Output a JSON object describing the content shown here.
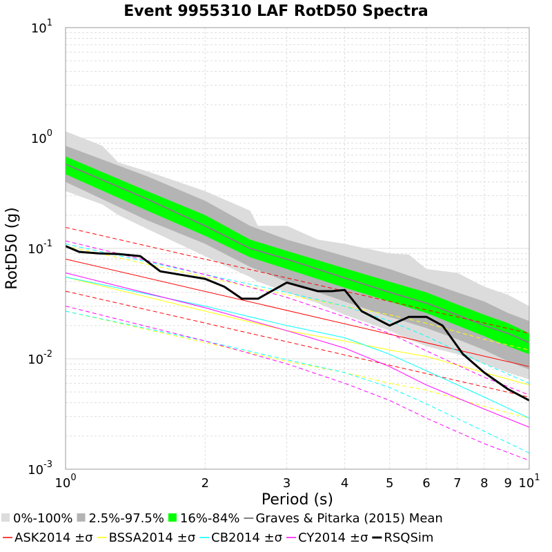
{
  "chart_data": {
    "type": "line",
    "title": "Event 9955310 LAF RotD50 Spectra",
    "xlabel": "Period (s)",
    "ylabel": "RotD50 (g)",
    "x_scale": "log",
    "y_scale": "log",
    "xlim": [
      1,
      10
    ],
    "ylim": [
      0.001,
      10
    ],
    "grid": true,
    "legend_placement": "bottom",
    "x_ticks": [
      {
        "value": 1,
        "base": "10",
        "exp": "0"
      },
      {
        "value": 2,
        "label": "2"
      },
      {
        "value": 3,
        "label": "3"
      },
      {
        "value": 4,
        "label": "4"
      },
      {
        "value": 5,
        "label": "5"
      },
      {
        "value": 6,
        "label": "6"
      },
      {
        "value": 7,
        "label": "7"
      },
      {
        "value": 8,
        "label": "8"
      },
      {
        "value": 9,
        "label": "9"
      },
      {
        "value": 10,
        "base": "10",
        "exp": "1"
      }
    ],
    "y_ticks": [
      {
        "value": 10,
        "base": "10",
        "exp": "1"
      },
      {
        "value": 1,
        "base": "10",
        "exp": "0"
      },
      {
        "value": 0.1,
        "base": "10",
        "exp": "-1"
      },
      {
        "value": 0.01,
        "base": "10",
        "exp": "-2"
      },
      {
        "value": 0.001,
        "base": "10",
        "exp": "-3"
      }
    ],
    "bands": [
      {
        "name": "0%-100%",
        "color": "#dcdcdc",
        "x": [
          1,
          1.2,
          1.3,
          1.5,
          2,
          2.5,
          2.6,
          3,
          3.5,
          4,
          5,
          5.5,
          6,
          7,
          8,
          9,
          10
        ],
        "upper": [
          1.15,
          0.85,
          0.6,
          0.5,
          0.33,
          0.22,
          0.16,
          0.16,
          0.12,
          0.11,
          0.09,
          0.088,
          0.065,
          0.06,
          0.045,
          0.038,
          0.03
        ],
        "lower": [
          0.33,
          0.25,
          0.2,
          0.15,
          0.085,
          0.055,
          0.05,
          0.04,
          0.032,
          0.025,
          0.018,
          0.015,
          0.013,
          0.011,
          0.009,
          0.0075,
          0.0065
        ]
      },
      {
        "name": "2.5%-97.5%",
        "color": "#b4b4b4",
        "x": [
          1,
          1.5,
          2,
          2.5,
          3,
          4,
          5,
          6,
          7,
          8,
          9,
          10
        ],
        "upper": [
          0.85,
          0.45,
          0.27,
          0.16,
          0.12,
          0.085,
          0.065,
          0.05,
          0.04,
          0.033,
          0.026,
          0.022
        ],
        "lower": [
          0.4,
          0.18,
          0.11,
          0.068,
          0.05,
          0.033,
          0.024,
          0.019,
          0.015,
          0.012,
          0.0095,
          0.008
        ]
      },
      {
        "name": "16%-84%",
        "color": "#00ff00",
        "x": [
          1,
          1.5,
          2,
          2.5,
          3,
          4,
          5,
          6,
          7,
          8,
          9,
          10
        ],
        "upper": [
          0.68,
          0.33,
          0.2,
          0.12,
          0.095,
          0.066,
          0.05,
          0.04,
          0.031,
          0.025,
          0.021,
          0.017
        ],
        "lower": [
          0.47,
          0.22,
          0.13,
          0.083,
          0.065,
          0.044,
          0.033,
          0.026,
          0.02,
          0.016,
          0.013,
          0.011
        ]
      }
    ],
    "series": [
      {
        "name": "Graves & Pitarka (2015) Mean",
        "color": "#808080",
        "style": "solid",
        "width": 2,
        "x": [
          1,
          1.5,
          2,
          2.5,
          3,
          4,
          5,
          6,
          7,
          8,
          9,
          10
        ],
        "y": [
          0.58,
          0.28,
          0.16,
          0.1,
          0.08,
          0.054,
          0.04,
          0.032,
          0.025,
          0.02,
          0.017,
          0.014
        ]
      },
      {
        "name": "ASK2014 ±σ",
        "color": "#ff0000",
        "style": "solid",
        "width": 1,
        "x": [
          1,
          10
        ],
        "y": [
          0.08,
          0.0085
        ]
      },
      {
        "color": "#ff0000",
        "style": "dashed",
        "width": 1,
        "x": [
          1,
          10
        ],
        "y": [
          0.155,
          0.017
        ]
      },
      {
        "color": "#ff0000",
        "style": "dashed",
        "width": 1,
        "x": [
          1,
          10
        ],
        "y": [
          0.041,
          0.0045
        ]
      },
      {
        "name": "BSSA2014 ±σ",
        "color": "#ffff00",
        "style": "solid",
        "width": 1,
        "x": [
          1,
          2,
          3,
          4,
          5,
          6,
          8,
          10
        ],
        "y": [
          0.055,
          0.027,
          0.018,
          0.0145,
          0.012,
          0.0105,
          0.0075,
          0.0058
        ]
      },
      {
        "color": "#ffff00",
        "style": "dashed",
        "width": 1,
        "x": [
          1,
          2,
          3,
          4,
          5,
          6,
          8,
          10
        ],
        "y": [
          0.105,
          0.055,
          0.038,
          0.03,
          0.025,
          0.021,
          0.015,
          0.012
        ]
      },
      {
        "color": "#ffff00",
        "style": "dashed",
        "width": 1,
        "x": [
          1,
          2,
          3,
          4,
          5,
          6,
          8,
          10
        ],
        "y": [
          0.027,
          0.014,
          0.0095,
          0.0075,
          0.006,
          0.0052,
          0.0037,
          0.0029
        ]
      },
      {
        "name": "CB2014 ±σ",
        "color": "#00ffff",
        "style": "solid",
        "width": 1,
        "x": [
          1,
          2,
          3,
          4,
          5,
          6,
          8,
          10
        ],
        "y": [
          0.055,
          0.03,
          0.02,
          0.0155,
          0.011,
          0.0078,
          0.0045,
          0.0029
        ]
      },
      {
        "color": "#00ffff",
        "style": "dashed",
        "width": 1,
        "x": [
          1,
          2,
          3,
          4,
          5,
          6,
          8,
          10
        ],
        "y": [
          0.11,
          0.058,
          0.04,
          0.03,
          0.022,
          0.016,
          0.009,
          0.006
        ]
      },
      {
        "color": "#00ffff",
        "style": "dashed",
        "width": 1,
        "x": [
          1,
          2,
          3,
          4,
          5,
          6,
          8,
          10
        ],
        "y": [
          0.027,
          0.0145,
          0.0098,
          0.0075,
          0.0055,
          0.0039,
          0.0022,
          0.0014
        ]
      },
      {
        "name": "CY2014 ±σ",
        "color": "#ff00ff",
        "style": "solid",
        "width": 1,
        "x": [
          1,
          2,
          3,
          4,
          5,
          6,
          8,
          10
        ],
        "y": [
          0.06,
          0.029,
          0.018,
          0.0125,
          0.0085,
          0.0058,
          0.0035,
          0.0024
        ]
      },
      {
        "color": "#ff00ff",
        "style": "dashed",
        "width": 1,
        "x": [
          1,
          2,
          3,
          4,
          5,
          6,
          8,
          10
        ],
        "y": [
          0.117,
          0.058,
          0.036,
          0.024,
          0.017,
          0.0118,
          0.0068,
          0.0047
        ]
      },
      {
        "color": "#ff00ff",
        "style": "dashed",
        "width": 1,
        "x": [
          1,
          2,
          3,
          4,
          5,
          6,
          8,
          10
        ],
        "y": [
          0.03,
          0.0145,
          0.009,
          0.006,
          0.0042,
          0.0029,
          0.0017,
          0.0012
        ]
      },
      {
        "name": "RSQSim",
        "color": "#000000",
        "style": "solid",
        "width": 3,
        "x": [
          1,
          1.07,
          1.18,
          1.3,
          1.45,
          1.6,
          1.85,
          2.0,
          2.2,
          2.4,
          2.6,
          3.0,
          3.5,
          3.75,
          4.0,
          4.35,
          5.0,
          5.5,
          6.0,
          6.5,
          7.2,
          8.0,
          9.0,
          10.0
        ],
        "y": [
          0.105,
          0.093,
          0.09,
          0.089,
          0.085,
          0.062,
          0.056,
          0.053,
          0.045,
          0.035,
          0.035,
          0.049,
          0.041,
          0.041,
          0.042,
          0.027,
          0.02,
          0.024,
          0.024,
          0.02,
          0.011,
          0.0075,
          0.0053,
          0.0042
        ]
      }
    ],
    "legend_rows": [
      [
        {
          "label": "0%-100%",
          "symbol": "square",
          "color": "#dcdcdc"
        },
        {
          "label": "2.5%-97.5%",
          "symbol": "square",
          "color": "#b4b4b4"
        },
        {
          "label": "16%-84%",
          "symbol": "square",
          "color": "#00ff00"
        },
        {
          "label": "Graves & Pitarka (2015) Mean",
          "symbol": "line",
          "color": "#808080"
        }
      ],
      [
        {
          "label": "ASK2014 ±σ",
          "symbol": "line",
          "color": "#ff0000"
        },
        {
          "label": "BSSA2014 ±σ",
          "symbol": "line",
          "color": "#ffff00"
        },
        {
          "label": "CB2014 ±σ",
          "symbol": "line",
          "color": "#00ffff"
        },
        {
          "label": "CY2014 ±σ",
          "symbol": "line",
          "color": "#ff00ff"
        },
        {
          "label": "RSQSim",
          "symbol": "line",
          "color": "#000000"
        }
      ]
    ]
  }
}
